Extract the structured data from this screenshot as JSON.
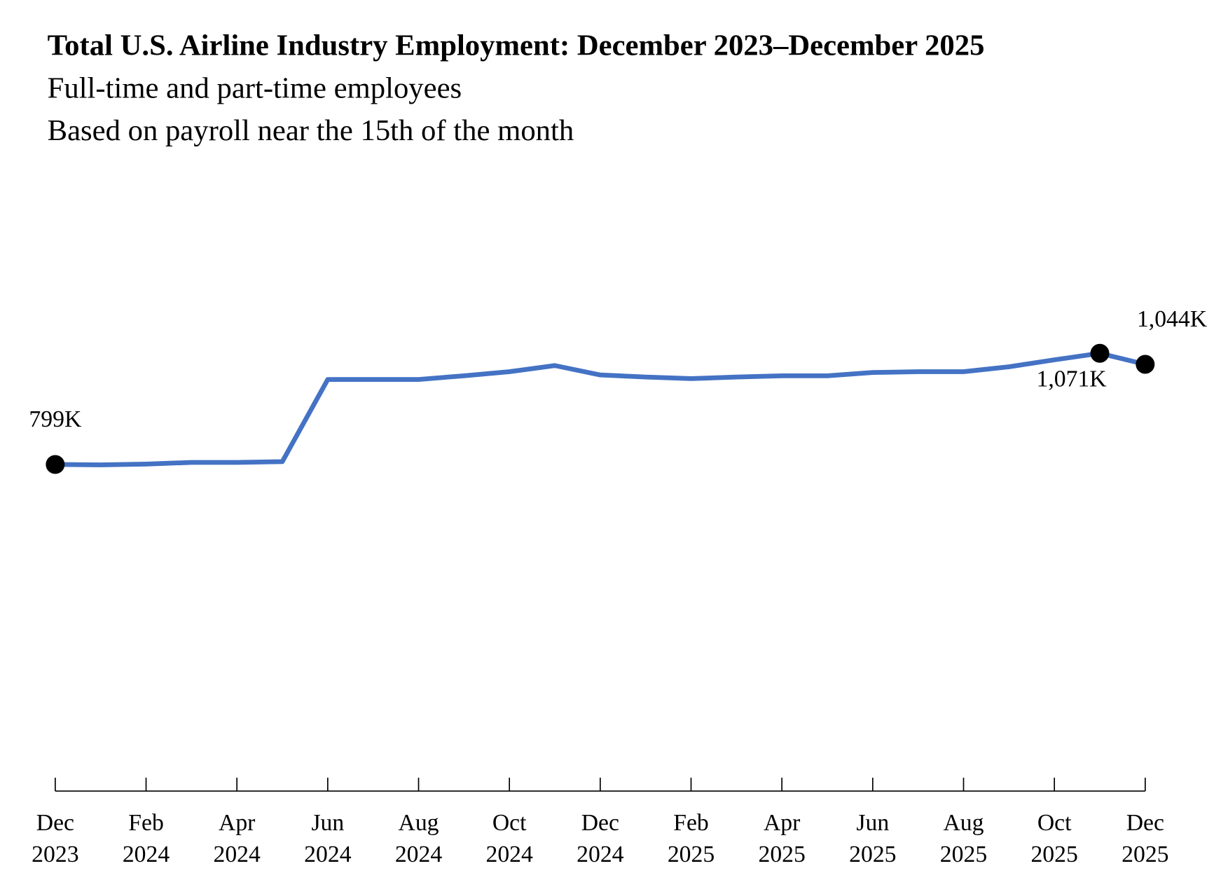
{
  "chart_data": {
    "type": "line",
    "title": "Total U.S. Airline Industry Employment: December 2023–December 2025",
    "subtitle": [
      "Full-time and part-time employees",
      "Based on payroll near the 15th of the month"
    ],
    "categories": [
      "Dec 2023",
      null,
      "Feb 2024",
      null,
      "Apr 2024",
      null,
      "Jun 2024",
      null,
      "Aug 2024",
      null,
      "Oct 2024",
      null,
      "Dec 2024",
      null,
      "Feb 2025",
      null,
      "Apr 2025",
      null,
      "Jun 2025",
      null,
      "Aug 2025",
      null,
      "Oct 2025",
      null,
      "Dec 2025"
    ],
    "values": [
      799,
      798,
      800,
      804,
      804,
      806,
      1007,
      1007,
      1007,
      1016,
      1026,
      1041,
      1018,
      1013,
      1009,
      1013,
      1016,
      1016,
      1024,
      1026,
      1026,
      1038,
      1055,
      1071,
      1044
    ],
    "value_labels": [
      "799K",
      null,
      null,
      null,
      null,
      null,
      null,
      null,
      null,
      null,
      null,
      null,
      null,
      null,
      null,
      null,
      null,
      null,
      null,
      null,
      null,
      null,
      null,
      "1,071K",
      "1,044K"
    ],
    "color": "#4472c4",
    "ylim": [
      0,
      1400
    ]
  }
}
